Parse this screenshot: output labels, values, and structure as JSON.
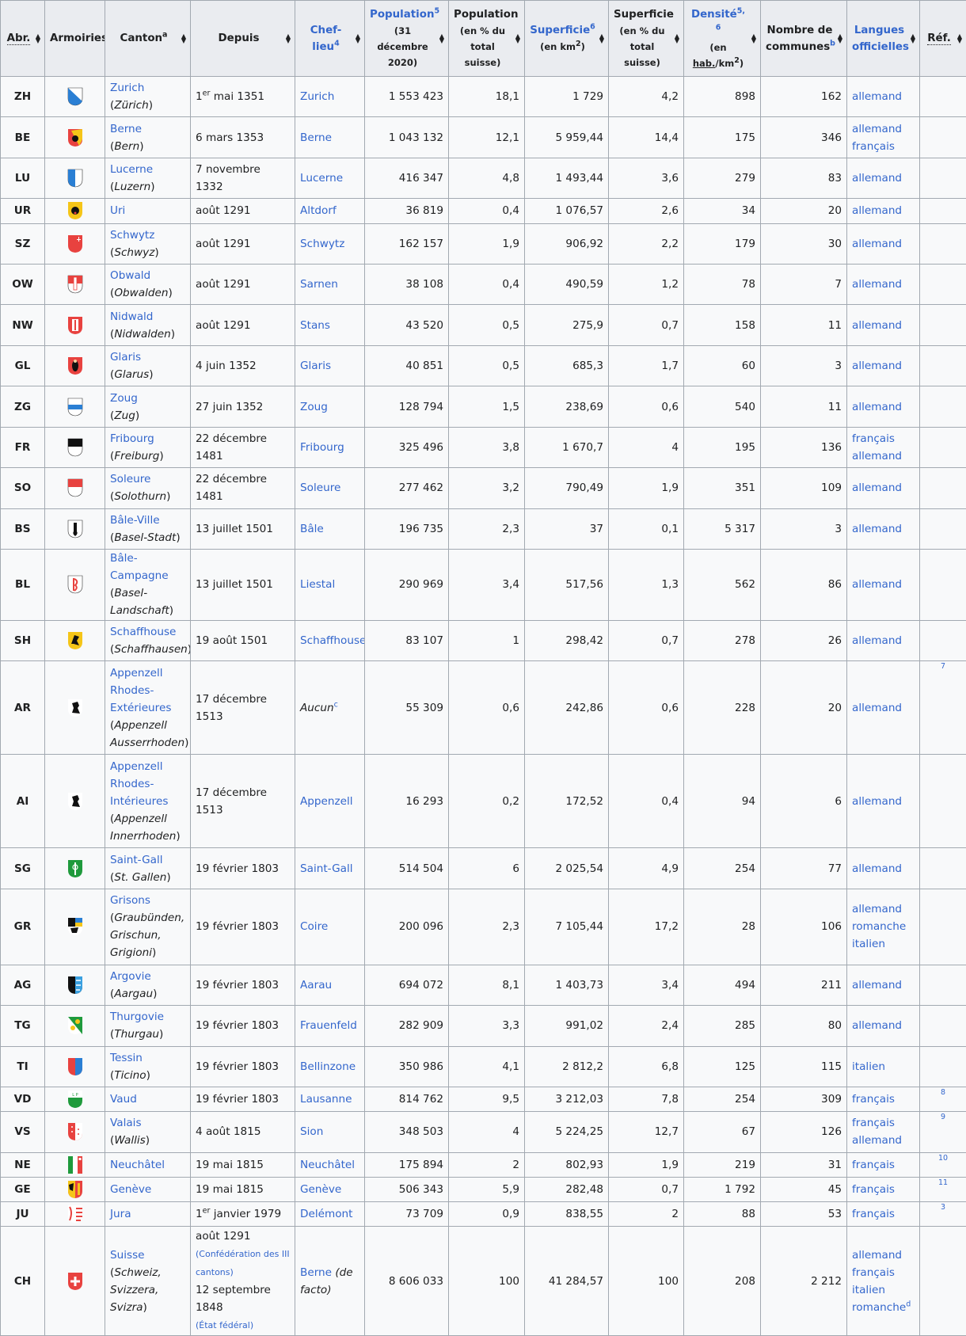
{
  "headers": {
    "abr": "Abr.",
    "armoiries": "Armoiries",
    "canton": "Canton",
    "canton_note": "a",
    "depuis": "Depuis",
    "chef_lieu": "Chef-lieu",
    "chef_lieu_note": "4",
    "population": "Population",
    "population_note": "5",
    "population_sub": "(31 décembre 2020)",
    "population_pct": "Population",
    "population_pct_sub": "(en % du total suisse)",
    "superficie": "Superficie",
    "superficie_note": "6",
    "superficie_sub_pre": "(en km",
    "superficie_sub_sup": "2",
    "superficie_sub_post": ")",
    "superficie_pct": "Superficie",
    "superficie_pct_sub": "(en % du total suisse)",
    "densite": "Densité",
    "densite_note": "5, 6",
    "densite_sub_pre": "(en ",
    "densite_sub_link": "hab.",
    "densite_sub_km": "/km",
    "densite_sub_sup": "2",
    "densite_sub_post": ")",
    "communes": "Nombre de communes",
    "communes_note": "b",
    "langues": "Langues officielles",
    "ref": "Réf."
  },
  "rows": [
    {
      "abr": "ZH",
      "canton": "Zurich",
      "local": "Zürich",
      "depuis_pre": "1",
      "depuis_sup": "er",
      "depuis_post": " mai 1351",
      "chef": "Zurich",
      "pop": "1 553 423",
      "pop_pct": "18,1",
      "sup": "1 729",
      "sup_pct": "4,2",
      "dens": "898",
      "comm": "162",
      "lang1": "allemand",
      "lang2": "",
      "ref": "",
      "coat": "zh"
    },
    {
      "abr": "BE",
      "canton": "Berne",
      "local": "Bern",
      "depuis_pre": "6 mars 1353",
      "chef": "Berne",
      "pop": "1 043 132",
      "pop_pct": "12,1",
      "sup": "5 959,44",
      "sup_pct": "14,4",
      "dens": "175",
      "comm": "346",
      "lang1": "allemand",
      "lang2": "français",
      "ref": "",
      "coat": "be"
    },
    {
      "abr": "LU",
      "canton": "Lucerne",
      "local": "Luzern",
      "depuis_pre": "7 novembre 1332",
      "chef": "Lucerne",
      "pop": "416 347",
      "pop_pct": "4,8",
      "sup": "1 493,44",
      "sup_pct": "3,6",
      "dens": "279",
      "comm": "83",
      "lang1": "allemand",
      "lang2": "",
      "ref": "",
      "coat": "lu"
    },
    {
      "abr": "UR",
      "canton": "Uri",
      "local": "",
      "depuis_pre": "août 1291",
      "chef": "Altdorf",
      "pop": "36 819",
      "pop_pct": "0,4",
      "sup": "1 076,57",
      "sup_pct": "2,6",
      "dens": "34",
      "comm": "20",
      "lang1": "allemand",
      "lang2": "",
      "ref": "",
      "coat": "ur"
    },
    {
      "abr": "SZ",
      "canton": "Schwytz",
      "local": "Schwyz",
      "depuis_pre": "août 1291",
      "chef": "Schwytz",
      "pop": "162 157",
      "pop_pct": "1,9",
      "sup": "906,92",
      "sup_pct": "2,2",
      "dens": "179",
      "comm": "30",
      "lang1": "allemand",
      "lang2": "",
      "ref": "",
      "coat": "sz"
    },
    {
      "abr": "OW",
      "canton": "Obwald",
      "local": "Obwalden",
      "depuis_pre": "août 1291",
      "chef": "Sarnen",
      "pop": "38 108",
      "pop_pct": "0,4",
      "sup": "490,59",
      "sup_pct": "1,2",
      "dens": "78",
      "comm": "7",
      "lang1": "allemand",
      "lang2": "",
      "ref": "",
      "coat": "ow"
    },
    {
      "abr": "NW",
      "canton": "Nidwald",
      "local": "Nidwalden",
      "depuis_pre": "août 1291",
      "chef": "Stans",
      "pop": "43 520",
      "pop_pct": "0,5",
      "sup": "275,9",
      "sup_pct": "0,7",
      "dens": "158",
      "comm": "11",
      "lang1": "allemand",
      "lang2": "",
      "ref": "",
      "coat": "nw"
    },
    {
      "abr": "GL",
      "canton": "Glaris",
      "local": "Glarus",
      "depuis_pre": "4 juin 1352",
      "chef": "Glaris",
      "pop": "40 851",
      "pop_pct": "0,5",
      "sup": "685,3",
      "sup_pct": "1,7",
      "dens": "60",
      "comm": "3",
      "lang1": "allemand",
      "lang2": "",
      "ref": "",
      "coat": "gl"
    },
    {
      "abr": "ZG",
      "canton": "Zoug",
      "local": "Zug",
      "depuis_pre": "27 juin 1352",
      "chef": "Zoug",
      "pop": "128 794",
      "pop_pct": "1,5",
      "sup": "238,69",
      "sup_pct": "0,6",
      "dens": "540",
      "comm": "11",
      "lang1": "allemand",
      "lang2": "",
      "ref": "",
      "coat": "zg"
    },
    {
      "abr": "FR",
      "canton": "Fribourg",
      "local": "Freiburg",
      "depuis_pre": "22 décembre 1481",
      "chef": "Fribourg",
      "pop": "325 496",
      "pop_pct": "3,8",
      "sup": "1 670,7",
      "sup_pct": "4",
      "dens": "195",
      "comm": "136",
      "lang1": "français",
      "lang2": "allemand",
      "ref": "",
      "coat": "fr"
    },
    {
      "abr": "SO",
      "canton": "Soleure",
      "local": "Solothurn",
      "depuis_pre": "22 décembre 1481",
      "chef": "Soleure",
      "pop": "277 462",
      "pop_pct": "3,2",
      "sup": "790,49",
      "sup_pct": "1,9",
      "dens": "351",
      "comm": "109",
      "lang1": "allemand",
      "lang2": "",
      "ref": "",
      "coat": "so"
    },
    {
      "abr": "BS",
      "canton": "Bâle-Ville",
      "local": "Basel-Stadt",
      "depuis_pre": "13 juillet 1501",
      "chef": "Bâle",
      "pop": "196 735",
      "pop_pct": "2,3",
      "sup": "37",
      "sup_pct": "0,1",
      "dens": "5 317",
      "comm": "3",
      "lang1": "allemand",
      "lang2": "",
      "ref": "",
      "coat": "bs"
    },
    {
      "abr": "BL",
      "canton": "Bâle-Campagne",
      "local": "Basel-Landschaft",
      "depuis_pre": "13 juillet 1501",
      "chef": "Liestal",
      "pop": "290 969",
      "pop_pct": "3,4",
      "sup": "517,56",
      "sup_pct": "1,3",
      "dens": "562",
      "comm": "86",
      "lang1": "allemand",
      "lang2": "",
      "ref": "",
      "coat": "bl"
    },
    {
      "abr": "SH",
      "canton": "Schaffhouse",
      "local": "Schaffhausen",
      "depuis_pre": "19 août 1501",
      "chef": "Schaffhouse",
      "pop": "83 107",
      "pop_pct": "1",
      "sup": "298,42",
      "sup_pct": "0,7",
      "dens": "278",
      "comm": "26",
      "lang1": "allemand",
      "lang2": "",
      "ref": "",
      "coat": "sh"
    },
    {
      "abr": "AR",
      "canton": "Appenzell Rhodes-Extérieures",
      "local": "Appenzell Ausserrhoden",
      "depuis_pre": "17 décembre 1513",
      "chef": "Aucun",
      "chef_note": "c",
      "chef_italic": true,
      "pop": "55 309",
      "pop_pct": "0,6",
      "sup": "242,86",
      "sup_pct": "0,6",
      "dens": "228",
      "comm": "20",
      "lang1": "allemand",
      "lang2": "",
      "ref": "7",
      "coat": "ar"
    },
    {
      "abr": "AI",
      "canton": "Appenzell Rhodes-Intérieures",
      "local": "Appenzell Innerrhoden",
      "depuis_pre": "17 décembre 1513",
      "chef": "Appenzell",
      "pop": "16 293",
      "pop_pct": "0,2",
      "sup": "172,52",
      "sup_pct": "0,4",
      "dens": "94",
      "comm": "6",
      "lang1": "allemand",
      "lang2": "",
      "ref": "",
      "coat": "ai"
    },
    {
      "abr": "SG",
      "canton": "Saint-Gall",
      "local": "St. Gallen",
      "depuis_pre": "19 février 1803",
      "chef": "Saint-Gall",
      "pop": "514 504",
      "pop_pct": "6",
      "sup": "2 025,54",
      "sup_pct": "4,9",
      "dens": "254",
      "comm": "77",
      "lang1": "allemand",
      "lang2": "",
      "ref": "",
      "coat": "sg"
    },
    {
      "abr": "GR",
      "canton": "Grisons",
      "local": "Graubünden, Grischun, Grigioni",
      "depuis_pre": "19 février 1803",
      "chef": "Coire",
      "pop": "200 096",
      "pop_pct": "2,3",
      "sup": "7 105,44",
      "sup_pct": "17,2",
      "dens": "28",
      "comm": "106",
      "lang1": "allemand",
      "lang2": "romanche",
      "lang3": "italien",
      "ref": "",
      "coat": "gr"
    },
    {
      "abr": "AG",
      "canton": "Argovie",
      "local": "Aargau",
      "depuis_pre": "19 février 1803",
      "chef": "Aarau",
      "pop": "694 072",
      "pop_pct": "8,1",
      "sup": "1 403,73",
      "sup_pct": "3,4",
      "dens": "494",
      "comm": "211",
      "lang1": "allemand",
      "lang2": "",
      "ref": "",
      "coat": "ag"
    },
    {
      "abr": "TG",
      "canton": "Thurgovie",
      "local": "Thurgau",
      "depuis_pre": "19 février 1803",
      "chef": "Frauenfeld",
      "pop": "282 909",
      "pop_pct": "3,3",
      "sup": "991,02",
      "sup_pct": "2,4",
      "dens": "285",
      "comm": "80",
      "lang1": "allemand",
      "lang2": "",
      "ref": "",
      "coat": "tg"
    },
    {
      "abr": "TI",
      "canton": "Tessin",
      "local": "Ticino",
      "depuis_pre": "19 février 1803",
      "chef": "Bellinzone",
      "pop": "350 986",
      "pop_pct": "4,1",
      "sup": "2 812,2",
      "sup_pct": "6,8",
      "dens": "125",
      "comm": "115",
      "lang1": "italien",
      "lang2": "",
      "ref": "",
      "coat": "ti"
    },
    {
      "abr": "VD",
      "canton": "Vaud",
      "local": "",
      "depuis_pre": "19 février 1803",
      "chef": "Lausanne",
      "pop": "814 762",
      "pop_pct": "9,5",
      "sup": "3 212,03",
      "sup_pct": "7,8",
      "dens": "254",
      "comm": "309",
      "lang1": "français",
      "lang2": "",
      "ref": "8",
      "coat": "vd"
    },
    {
      "abr": "VS",
      "canton": "Valais",
      "local": "Wallis",
      "depuis_pre": "4 août 1815",
      "chef": "Sion",
      "pop": "348 503",
      "pop_pct": "4",
      "sup": "5 224,25",
      "sup_pct": "12,7",
      "dens": "67",
      "comm": "126",
      "lang1": "français",
      "lang2": "allemand",
      "ref": "9",
      "coat": "vs"
    },
    {
      "abr": "NE",
      "canton": "Neuchâtel",
      "local": "",
      "depuis_pre": "19 mai 1815",
      "chef": "Neuchâtel",
      "pop": "175 894",
      "pop_pct": "2",
      "sup": "802,93",
      "sup_pct": "1,9",
      "dens": "219",
      "comm": "31",
      "lang1": "français",
      "lang2": "",
      "ref": "10",
      "coat": "ne"
    },
    {
      "abr": "GE",
      "canton": "Genève",
      "local": "",
      "depuis_pre": "19 mai 1815",
      "chef": "Genève",
      "pop": "506 343",
      "pop_pct": "5,9",
      "sup": "282,48",
      "sup_pct": "0,7",
      "dens": "1 792",
      "comm": "45",
      "lang1": "français",
      "lang2": "",
      "ref": "11",
      "coat": "ge"
    },
    {
      "abr": "JU",
      "canton": "Jura",
      "local": "",
      "depuis_pre": "1",
      "depuis_sup": "er",
      "depuis_post": " janvier 1979",
      "chef": "Delémont",
      "pop": "73 709",
      "pop_pct": "0,9",
      "sup": "838,55",
      "sup_pct": "2",
      "dens": "88",
      "comm": "53",
      "lang1": "français",
      "lang2": "",
      "ref": "3",
      "coat": "ju"
    }
  ],
  "total": {
    "abr": "CH",
    "canton": "Suisse",
    "local": "Schweiz, Svizzera, Svizra",
    "depuis1": "août 1291",
    "depuis1_note": "(Confédération des III cantons)",
    "depuis2": "12 septembre 1848",
    "depuis2_note": "(État fédéral)",
    "chef": "Berne",
    "chef_note": "(de facto)",
    "pop": "8 606 033",
    "pop_pct": "100",
    "sup": "41 284,57",
    "sup_pct": "100",
    "dens": "208",
    "comm": "2 212",
    "lang1": "allemand",
    "lang2": "français",
    "lang3": "italien",
    "lang4": "romanche",
    "lang4_note": "d",
    "coat": "ch"
  },
  "colors": {
    "link": "#3366cc",
    "header_bg": "#eaecf0",
    "cell_bg": "#f8f9fa",
    "border": "#a2a9b1"
  }
}
